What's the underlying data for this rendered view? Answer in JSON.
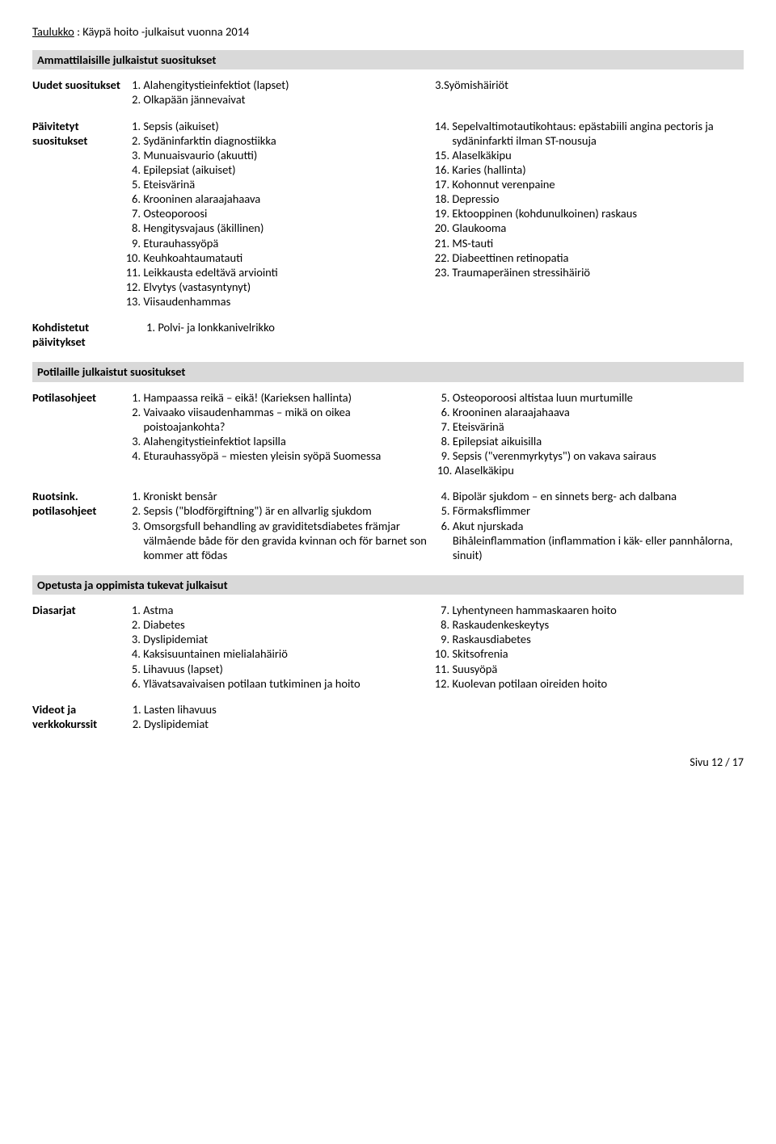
{
  "title_prefix": "Taulukko",
  "title_rest": " : Käypä hoito -julkaisut vuonna 2014",
  "sections": {
    "ammat": "Ammattilaisille julkaistut suositukset",
    "pot": "Potilaille julkaistut suositukset",
    "opetus": "Opetusta ja oppimista tukevat julkaisut"
  },
  "labels": {
    "uudet": "Uudet suositukset",
    "paiv": "Päivitetyt suositukset",
    "kohd": "Kohdistetut päivitykset",
    "potohj": "Potilasohjeet",
    "ruots": "Ruotsink. potilasohjeet",
    "dias": "Diasarjat",
    "videot": "Videot ja verkkokurssit"
  },
  "uudet_left": [
    "Alahengitystieinfektiot (lapset)",
    "Olkapään jännevaivat"
  ],
  "uudet_right": "3.Syömishäiriöt",
  "paiv_left": [
    "Sepsis (aikuiset)",
    "Sydäninfarktin diagnostiikka",
    "Munuaisvaurio (akuutti)",
    "Epilepsiat (aikuiset)",
    "Eteisvärinä",
    "Krooninen alaraajahaava",
    "Osteoporoosi",
    "Hengitysvajaus (äkillinen)",
    "Eturauhassyöpä",
    "Keuhkoahtaumatauti",
    "Leikkausta edeltävä arviointi",
    "Elvytys (vastasyntynyt)",
    "Viisaudenhammas"
  ],
  "paiv_right": [
    "Sepelvaltimotautikohtaus: epästabiili angina pectoris ja sydäninfarkti ilman ST-nousuja",
    "Alaselkäkipu",
    "Karies (hallinta)",
    "Kohonnut verenpaine",
    "Depressio",
    "Ektooppinen (kohdunulkoinen) raskaus",
    "Glaukooma",
    "MS-tauti",
    "Diabeettinen retinopatia",
    "Traumaperäinen stressihäiriö"
  ],
  "kohd_list": [
    "Polvi- ja lonkkanivelrikko"
  ],
  "pot_left": [
    "Hampaassa reikä – eikä! (Karieksen hallinta)",
    "Vaivaako viisaudenhammas – mikä on oikea poistoajankohta?",
    "Alahengitystieinfektiot lapsilla",
    "Eturauhassyöpä – miesten yleisin syöpä Suomessa"
  ],
  "pot_right": [
    "Osteoporoosi altistaa luun murtumille",
    "Krooninen alaraajahaava",
    "Eteisvärinä",
    "Epilepsiat aikuisilla",
    "Sepsis (\"verenmyrkytys\") on vakava sairaus"
  ],
  "pot_right_extra": "10. Alaselkäkipu",
  "ruots_left": [
    "Kroniskt bensår",
    "Sepsis (\"blodförgiftning\") är en allvarlig sjukdom",
    "Omsorgsfull behandling av graviditetsdiabetes främjar välmående både för den gravida kvinnan och för barnet son kommer att födas"
  ],
  "ruots_right": [
    "Bipolär sjukdom – en sinnets berg- ach dalbana",
    "Förmaksflimmer",
    "Akut njurskada"
  ],
  "ruots_right_extra": "Bihåleinflammation (inflammation i käk- eller pannhålorna, sinuit)",
  "dias_left": [
    "Astma",
    "Diabetes",
    "Dyslipidemiat",
    "Kaksisuuntainen mielialahäiriö",
    "Lihavuus (lapset)",
    "Ylävatsavaivaisen potilaan tutkiminen ja hoito"
  ],
  "dias_right": [
    "Lyhentyneen hammaskaaren hoito",
    "Raskaudenkeskeytys",
    "Raskausdiabetes",
    "Skitsofrenia",
    "Suusyöpä",
    "Kuolevan potilaan oireiden hoito"
  ],
  "videot_list": [
    "Lasten lihavuus",
    "Dyslipidemiat"
  ],
  "footer": "Sivu 12 / 17"
}
